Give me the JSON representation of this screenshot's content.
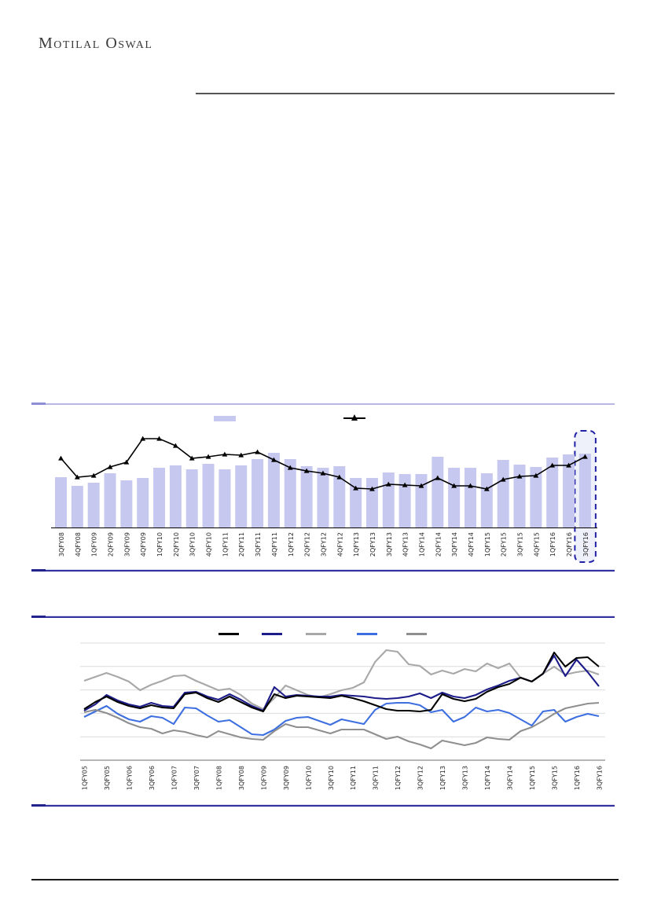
{
  "header": {
    "logo": "Motilal Oswal"
  },
  "colors": {
    "header_rule": "#565656",
    "section_rule_light": "#b7b7e4",
    "section_rule_dark": "#31319f",
    "footer_rule": "#1a1a1a",
    "tick_label": "#262626",
    "grid": "#dcdcdc",
    "axis": "#8c8c8c"
  },
  "chart_data": [
    {
      "type": "bar",
      "subtype": "bar-with-line-overlay",
      "title": "",
      "categories": [
        "3QFY08",
        "4QFY08",
        "1QFY09",
        "2QFY09",
        "3QFY09",
        "4QFY09",
        "1QFY10",
        "2QFY10",
        "3QFY10",
        "4QFY10",
        "1QFY11",
        "2QFY11",
        "3QFY11",
        "4QFY11",
        "1QFY12",
        "2QFY12",
        "3QFY12",
        "4QFY12",
        "1QFY13",
        "2QFY13",
        "3QFY13",
        "4QFY13",
        "1QFY14",
        "2QFY14",
        "3QFY14",
        "4QFY14",
        "1QFY15",
        "2QFY15",
        "3QFY15",
        "4QFY15",
        "1QFY16",
        "2QFY16",
        "3QFY16"
      ],
      "series": [
        {
          "name": "bar-series",
          "type": "bar",
          "color": "#c7c8ef",
          "values": [
            64,
            53,
            57,
            69,
            60,
            63,
            76,
            79,
            74,
            81,
            74,
            79,
            87,
            95,
            87,
            78,
            76,
            78,
            63,
            63,
            70,
            68,
            68,
            90,
            76,
            76,
            69,
            86,
            80,
            77,
            89,
            93,
            94
          ]
        },
        {
          "name": "line-series",
          "type": "line",
          "color": "#000000",
          "marker": "triangle",
          "values": [
            88,
            64,
            66,
            77,
            83,
            113,
            113,
            104,
            88,
            90,
            93,
            92,
            96,
            86,
            76,
            72,
            69,
            64,
            50,
            49,
            55,
            54,
            53,
            63,
            53,
            53,
            49,
            61,
            65,
            66,
            79,
            79,
            90
          ]
        }
      ],
      "ylabel": "",
      "xlabel": "",
      "y_axis_labels_visible": false,
      "value_units": "relative-estimate",
      "highlight_category": "3QFY16",
      "highlight_style": {
        "border": "#2222a8",
        "fill": "#eef0fa",
        "dashed": true
      },
      "legend": [
        {
          "label": "",
          "swatch": "bar",
          "color": "#c7c8ef"
        },
        {
          "label": "",
          "swatch": "line-triangle-marker",
          "color": "#000000"
        }
      ],
      "legend_position": "top"
    },
    {
      "type": "line",
      "title": "",
      "x_tick_labels": [
        "1QFY05",
        "3QFY05",
        "1QFY06",
        "3QFY06",
        "1QFY07",
        "3QFY07",
        "1QFY08",
        "3QFY08",
        "1QFY09",
        "3QFY09",
        "1QFY10",
        "3QFY10",
        "1QFY11",
        "3QFY11",
        "1QFY12",
        "3QFY12",
        "1QFY13",
        "3QFY13",
        "1QFY14",
        "3QFY14",
        "1QFY15",
        "3QFY15",
        "1QFY16",
        "3QFY16"
      ],
      "points_per_series": 47,
      "tick_every_n_points": 2,
      "series": [
        {
          "name": "series-3",
          "color": "#a8a8a8",
          "values": [
            101,
            106,
            111,
            106,
            100,
            89,
            96,
            101,
            107,
            108,
            101,
            95,
            89,
            91,
            83,
            72,
            65,
            79,
            95,
            89,
            83,
            80,
            84,
            89,
            92,
            99,
            125,
            140,
            138,
            122,
            120,
            109,
            114,
            110,
            116,
            113,
            123,
            117,
            123,
            105,
            100,
            110,
            119,
            109,
            112,
            114,
            109
          ]
        },
        {
          "name": "series-4",
          "color": "#3e6fe0",
          "values": [
            55,
            62,
            69,
            59,
            52,
            49,
            56,
            54,
            46,
            67,
            66,
            57,
            49,
            51,
            42,
            33,
            32,
            39,
            50,
            54,
            55,
            50,
            45,
            52,
            49,
            46,
            64,
            72,
            73,
            73,
            70,
            61,
            64,
            49,
            55,
            67,
            62,
            64,
            60,
            52,
            44,
            62,
            64,
            49,
            55,
            59,
            56
          ]
        },
        {
          "name": "series-5",
          "color": "#8f8f8f",
          "values": [
            61,
            64,
            60,
            54,
            47,
            42,
            40,
            34,
            38,
            36,
            32,
            29,
            37,
            33,
            29,
            27,
            26,
            37,
            46,
            42,
            42,
            38,
            34,
            39,
            39,
            39,
            33,
            27,
            30,
            24,
            20,
            15,
            25,
            22,
            19,
            22,
            29,
            27,
            26,
            37,
            42,
            50,
            59,
            66,
            69,
            72,
            73
          ]
        },
        {
          "name": "series-2",
          "color": "#1c1c8a",
          "values": [
            63,
            71,
            83,
            76,
            71,
            68,
            73,
            69,
            68,
            86,
            87,
            81,
            77,
            84,
            77,
            69,
            63,
            93,
            81,
            83,
            82,
            81,
            81,
            83,
            82,
            81,
            79,
            78,
            79,
            81,
            85,
            79,
            86,
            81,
            79,
            83,
            90,
            95,
            101,
            105,
            100,
            110,
            133,
            107,
            128,
            112,
            94
          ]
        },
        {
          "name": "series-1",
          "color": "#000000",
          "values": [
            65,
            74,
            81,
            74,
            69,
            66,
            70,
            67,
            66,
            84,
            86,
            79,
            74,
            81,
            74,
            67,
            62,
            84,
            79,
            82,
            81,
            80,
            79,
            82,
            79,
            75,
            70,
            65,
            63,
            63,
            62,
            64,
            84,
            78,
            75,
            78,
            87,
            93,
            97,
            105,
            100,
            110,
            137,
            119,
            130,
            131,
            119
          ]
        }
      ],
      "y_axis_labels_visible": false,
      "value_units": "relative-estimate",
      "gridlines": 5,
      "grid_on": true,
      "legend": [
        {
          "label": "",
          "color": "#000000"
        },
        {
          "label": "",
          "color": "#1c1c8a"
        },
        {
          "label": "",
          "color": "#a8a8a8"
        },
        {
          "label": "",
          "color": "#3e6fe0"
        },
        {
          "label": "",
          "color": "#8f8f8f"
        }
      ],
      "legend_position": "top"
    }
  ]
}
